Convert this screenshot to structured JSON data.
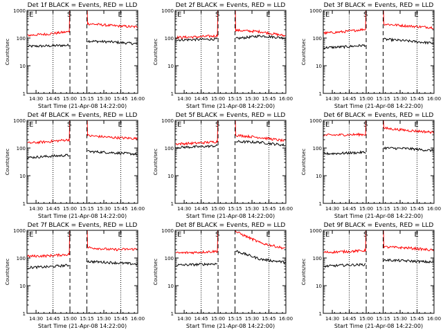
{
  "colors": {
    "events": "#000000",
    "lld": "#ff0000",
    "axes": "#000000",
    "background": "#ffffff"
  },
  "common": {
    "ylabel": "Counts/sec",
    "xlabel": "Start Time (21-Apr-08 14:22:00)",
    "xticks": [
      "14:30",
      "14:45",
      "15:00",
      "15:15",
      "15:30",
      "15:45",
      "16:00"
    ],
    "yticks": [
      "1",
      "10",
      "100",
      "1000"
    ],
    "markers": {
      "start_label": "E",
      "s_label": "S",
      "end_label": "E"
    },
    "x_range_min_after_14_22": [
      0,
      98
    ],
    "y_range_counts": [
      1,
      1000
    ],
    "y_scale": "log"
  },
  "chart_data": [
    {
      "type": "line",
      "title": "Det 1f BLACK = Events, RED = LLD",
      "gap": [
        15.0,
        15.25
      ],
      "dotted_lines": [
        "14:45",
        "15:45"
      ],
      "series": [
        {
          "name": "Events",
          "before": [
            50,
            52,
            55
          ],
          "after": [
            78,
            72,
            62
          ]
        },
        {
          "name": "LLD",
          "before": [
            125,
            140,
            170
          ],
          "after": [
            330,
            280,
            250
          ]
        }
      ]
    },
    {
      "type": "line",
      "title": "Det 2f BLACK = Events, RED = LLD",
      "gap": [
        15.0,
        15.25
      ],
      "dotted_lines": [
        "14:45",
        "15:45"
      ],
      "series": [
        {
          "name": "Events",
          "before": [
            85,
            88,
            92
          ],
          "after": [
            95,
            120,
            100
          ]
        },
        {
          "name": "LLD",
          "before": [
            105,
            110,
            120
          ],
          "after": [
            190,
            170,
            120
          ]
        }
      ]
    },
    {
      "type": "line",
      "title": "Det 3f BLACK = Events, RED = LLD",
      "gap": [
        15.0,
        15.25
      ],
      "dotted_lines": [
        "14:45",
        "15:45"
      ],
      "series": [
        {
          "name": "Events",
          "before": [
            45,
            48,
            55
          ],
          "after": [
            90,
            78,
            65
          ]
        },
        {
          "name": "LLD",
          "before": [
            150,
            170,
            210
          ],
          "after": [
            320,
            270,
            240
          ]
        }
      ]
    },
    {
      "type": "line",
      "title": "Det 4f BLACK = Events, RED = LLD",
      "gap": [
        15.0,
        15.25
      ],
      "dotted_lines": [
        "14:45",
        "15:45"
      ],
      "series": [
        {
          "name": "Events",
          "before": [
            45,
            50,
            55
          ],
          "after": [
            75,
            68,
            60
          ]
        },
        {
          "name": "LLD",
          "before": [
            150,
            170,
            200
          ],
          "after": [
            280,
            240,
            220
          ]
        }
      ]
    },
    {
      "type": "line",
      "title": "Det 5f BLACK = Events, RED = LLD",
      "gap": [
        15.0,
        15.25
      ],
      "dotted_lines": [
        "14:45",
        "15:45"
      ],
      "series": [
        {
          "name": "Events",
          "before": [
            105,
            110,
            120
          ],
          "after": [
            170,
            160,
            125
          ]
        },
        {
          "name": "LLD",
          "before": [
            140,
            150,
            170
          ],
          "after": [
            290,
            240,
            180
          ]
        }
      ]
    },
    {
      "type": "line",
      "title": "Det 6f BLACK = Events, RED = LLD",
      "gap": [
        15.0,
        15.25
      ],
      "dotted_lines": [
        "14:45",
        "15:45"
      ],
      "series": [
        {
          "name": "Events",
          "before": [
            62,
            65,
            70
          ],
          "after": [
            100,
            95,
            80
          ]
        },
        {
          "name": "LLD",
          "before": [
            290,
            300,
            310
          ],
          "after": [
            520,
            430,
            370
          ]
        }
      ]
    },
    {
      "type": "line",
      "title": "Det 7f BLACK = Events, RED = LLD",
      "gap": [
        15.0,
        15.25
      ],
      "dotted_lines": [
        "14:45",
        "15:45"
      ],
      "series": [
        {
          "name": "Events",
          "before": [
            45,
            48,
            55
          ],
          "after": [
            75,
            68,
            60
          ]
        },
        {
          "name": "LLD",
          "before": [
            115,
            120,
            135
          ],
          "after": [
            240,
            200,
            210
          ]
        }
      ]
    },
    {
      "type": "line",
      "title": "Det 8f BLACK = Events, RED = LLD",
      "gap": [
        15.0,
        15.25
      ],
      "dotted_lines": [
        "14:45",
        "15:45"
      ],
      "series": [
        {
          "name": "Events",
          "before": [
            55,
            58,
            62
          ],
          "after": [
            180,
            90,
            70
          ]
        },
        {
          "name": "LLD",
          "before": [
            150,
            160,
            175
          ],
          "after": [
            900,
            350,
            220
          ]
        }
      ]
    },
    {
      "type": "line",
      "title": "Det 9f BLACK = Events, RED = LLD",
      "gap": [
        15.0,
        15.25
      ],
      "dotted_lines": [
        "14:45",
        "15:45"
      ],
      "series": [
        {
          "name": "Events",
          "before": [
            50,
            55,
            58
          ],
          "after": [
            85,
            78,
            70
          ]
        },
        {
          "name": "LLD",
          "before": [
            160,
            170,
            185
          ],
          "after": [
            250,
            230,
            190
          ]
        }
      ]
    }
  ]
}
